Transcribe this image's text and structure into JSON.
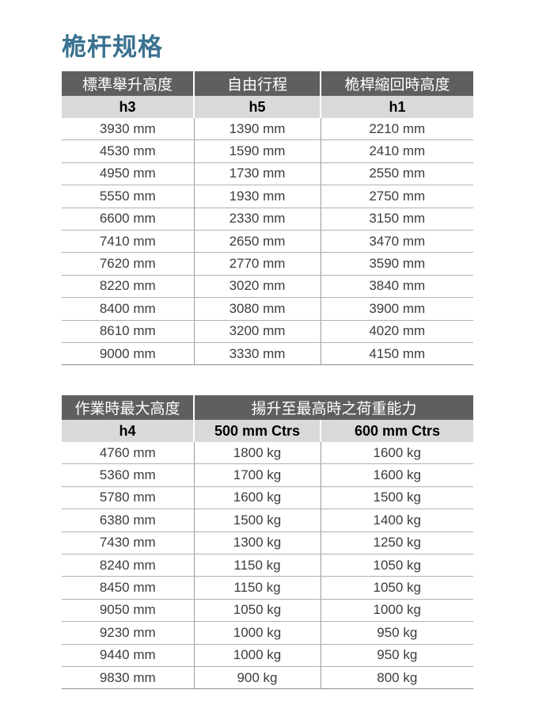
{
  "page": {
    "title": "桅杆规格"
  },
  "colors": {
    "title": "#3a7290",
    "header_bg": "#5f5f5f",
    "header_text": "#ffffff",
    "subheader_bg": "#d9d9d9",
    "row_divider": "#b1b1b1",
    "column_divider": "#9b9b9b",
    "cell_text": "#3c3c3c"
  },
  "table1": {
    "headers": [
      "標準舉升高度",
      "自由行程",
      "桅桿縮回時高度"
    ],
    "subheaders": [
      "h3",
      "h5",
      "h1"
    ],
    "rows": [
      [
        "3930 mm",
        "1390 mm",
        "2210 mm"
      ],
      [
        "4530 mm",
        "1590 mm",
        "2410 mm"
      ],
      [
        "4950 mm",
        "1730 mm",
        "2550 mm"
      ],
      [
        "5550 mm",
        "1930 mm",
        "2750 mm"
      ],
      [
        "6600 mm",
        "2330 mm",
        "3150 mm"
      ],
      [
        "7410 mm",
        "2650 mm",
        "3470 mm"
      ],
      [
        "7620 mm",
        "2770 mm",
        "3590 mm"
      ],
      [
        "8220 mm",
        "3020 mm",
        "3840 mm"
      ],
      [
        "8400 mm",
        "3080 mm",
        "3900 mm"
      ],
      [
        "8610 mm",
        "3200 mm",
        "4020 mm"
      ],
      [
        "9000 mm",
        "3330 mm",
        "4150 mm"
      ]
    ]
  },
  "table2": {
    "headers": [
      "作業時最大高度",
      "揚升至最高時之荷重能力"
    ],
    "subheaders": [
      "h4",
      "500 mm Ctrs",
      "600 mm Ctrs"
    ],
    "rows": [
      [
        "4760 mm",
        "1800 kg",
        "1600 kg"
      ],
      [
        "5360 mm",
        "1700 kg",
        "1600 kg"
      ],
      [
        "5780 mm",
        "1600 kg",
        "1500 kg"
      ],
      [
        "6380 mm",
        "1500 kg",
        "1400 kg"
      ],
      [
        "7430 mm",
        "1300 kg",
        "1250 kg"
      ],
      [
        "8240 mm",
        "1150 kg",
        "1050 kg"
      ],
      [
        "8450 mm",
        "1150 kg",
        "1050 kg"
      ],
      [
        "9050 mm",
        "1050 kg",
        "1000 kg"
      ],
      [
        "9230 mm",
        "1000 kg",
        "950 kg"
      ],
      [
        "9440 mm",
        "1000 kg",
        "950 kg"
      ],
      [
        "9830 mm",
        "900 kg",
        "800 kg"
      ]
    ]
  }
}
